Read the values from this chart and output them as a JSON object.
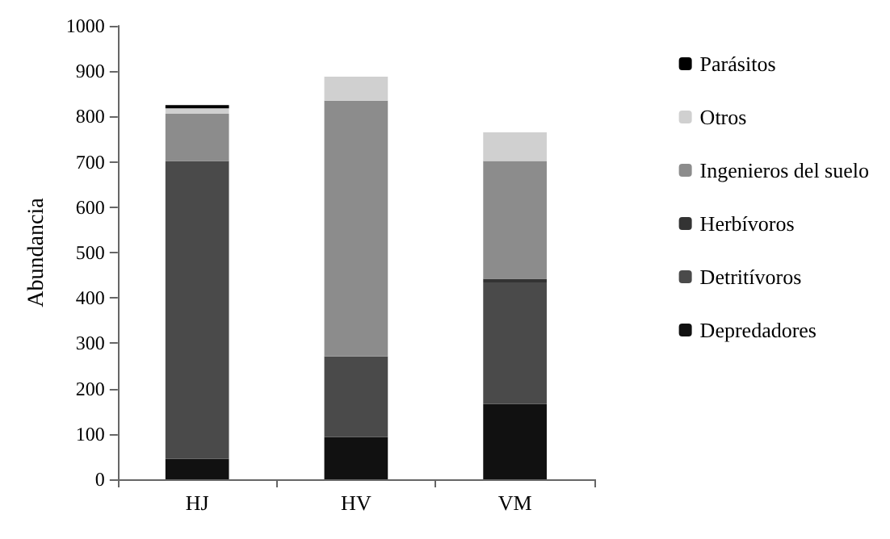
{
  "chart_data": {
    "type": "bar",
    "stacked": true,
    "ylabel": "Abundancia",
    "categories": [
      "HJ",
      "HV",
      "VM"
    ],
    "series": [
      {
        "name": "Depredadores",
        "color": "#111111",
        "values": [
          45,
          93,
          166
        ]
      },
      {
        "name": "Detritívoros",
        "color": "#4a4a4a",
        "values": [
          657,
          178,
          268
        ]
      },
      {
        "name": "Herbívoros",
        "color": "#333333",
        "values": [
          0,
          0,
          8
        ]
      },
      {
        "name": "Ingenieros del suelo",
        "color": "#8c8c8c",
        "values": [
          104,
          564,
          260
        ]
      },
      {
        "name": "Otros",
        "color": "#d0d0d0",
        "values": [
          12,
          53,
          63
        ]
      },
      {
        "name": "Parásitos",
        "color": "#000000",
        "values": [
          7,
          0,
          0
        ]
      }
    ],
    "ylim": [
      0,
      1000
    ],
    "yticks": [
      0,
      100,
      200,
      300,
      400,
      500,
      600,
      700,
      800,
      900,
      1000
    ],
    "grid": false,
    "legend": "right"
  }
}
